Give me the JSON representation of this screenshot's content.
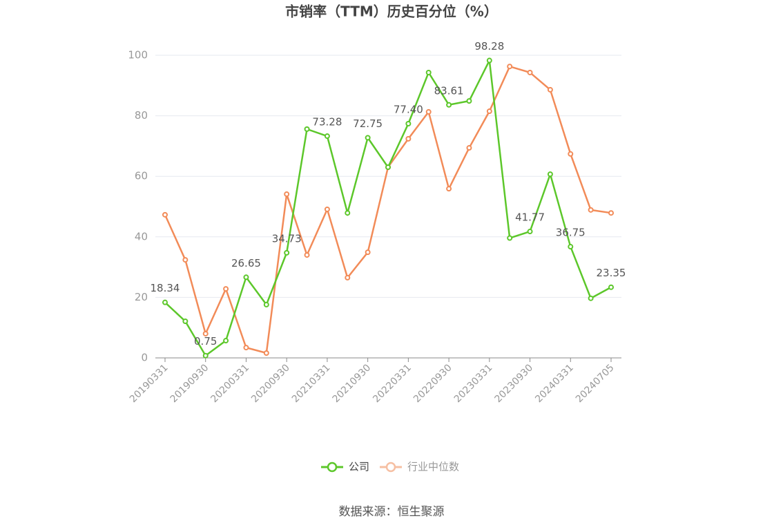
{
  "chart_data": {
    "type": "line",
    "title": "市销率（TTM）历史百分位（%）",
    "source": "数据来源：恒生聚源",
    "categories": [
      "20190331",
      null,
      "20190930",
      null,
      "20200331",
      null,
      "20200930",
      null,
      "20210331",
      null,
      "20210930",
      null,
      "20220331",
      null,
      "20220930",
      null,
      "20230331",
      null,
      "20230930",
      null,
      "20240331",
      null,
      "20240705"
    ],
    "series": [
      {
        "name": "公司",
        "color": "#5cc72a",
        "values": [
          18.34,
          12.1,
          0.75,
          5.7,
          26.65,
          17.6,
          34.73,
          75.6,
          73.28,
          47.9,
          72.75,
          63,
          77.4,
          94.3,
          83.61,
          84.9,
          98.28,
          39.6,
          41.77,
          60.7,
          36.75,
          19.7,
          23.35
        ],
        "value_labels": [
          "18.34",
          null,
          "0.75",
          null,
          "26.65",
          null,
          "34.73",
          null,
          "73.28",
          null,
          "72.75",
          null,
          "77.40",
          null,
          "83.61",
          null,
          "98.28",
          null,
          "41.77",
          null,
          "36.75",
          null,
          "23.35"
        ]
      },
      {
        "name": "行业中位数",
        "color": "#f28b58",
        "values": [
          47.3,
          32.4,
          8,
          22.8,
          3.4,
          1.6,
          54.1,
          34,
          49.1,
          26.5,
          34.9,
          63,
          72.4,
          81.3,
          55.9,
          69.4,
          81.5,
          96.3,
          94.3,
          88.6,
          67.4,
          48.9,
          47.9
        ]
      }
    ],
    "ylim": [
      0,
      100
    ],
    "yticks": [
      0,
      20,
      40,
      60,
      80,
      100
    ],
    "grid": true
  }
}
